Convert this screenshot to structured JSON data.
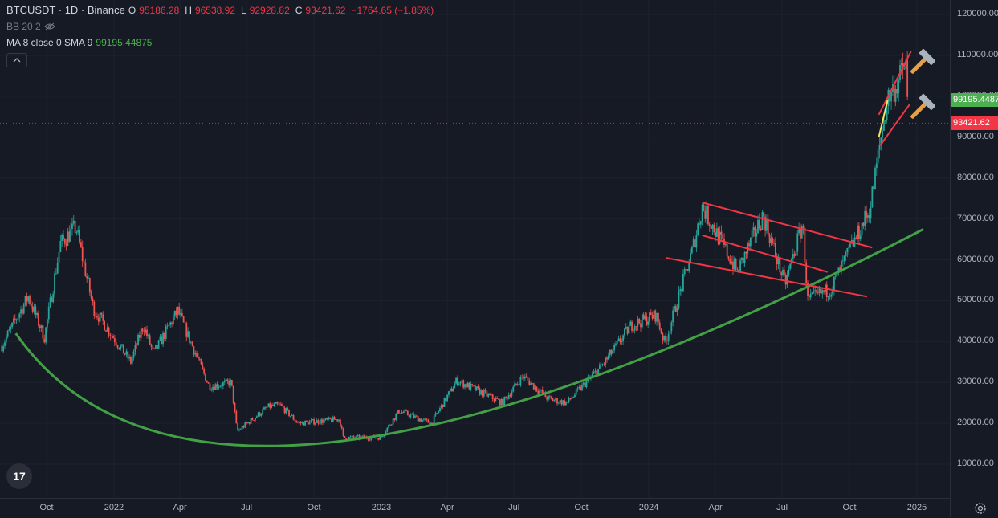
{
  "legend": {
    "symbol": "BTCUSDT · 1D · Binance",
    "open_label": "O",
    "open": "95186.28",
    "high_label": "H",
    "high": "96538.92",
    "low_label": "L",
    "low": "92928.82",
    "close_label": "C",
    "close": "93421.62",
    "change": "−1764.65 (−1.85%)",
    "bb": "BB 20 2",
    "ma_label": "MA 8 close 0 SMA 9",
    "ma_value": "99195.44875"
  },
  "colors": {
    "background": "#161a25",
    "up": "#26a69a",
    "down": "#ef5350",
    "trend_curve": "#43a047",
    "channel": "#f23645",
    "ma_badge": "#4caf50",
    "price_badge": "#f23645"
  },
  "price_badges": {
    "ma": "99195.4487",
    "last": "93421.62"
  },
  "icons": {
    "tv_logo": "17",
    "annotation": "hammer-icon"
  },
  "chart_data": {
    "type": "candlestick",
    "title": "BTCUSDT · 1D · Binance",
    "xlabel": "",
    "ylabel": "",
    "ylim": [
      0,
      125000
    ],
    "y_ticks": [
      "120000.00",
      "110000.00",
      "100000.00",
      "90000.00",
      "80000.00",
      "70000.00",
      "60000.00",
      "50000.00",
      "40000.00",
      "30000.00",
      "20000.00",
      "10000.00"
    ],
    "x_ticks": [
      "Oct",
      "2022",
      "Apr",
      "Jul",
      "Oct",
      "2023",
      "Apr",
      "Jul",
      "Oct",
      "2024",
      "Apr",
      "Jul",
      "Oct",
      "2025"
    ],
    "x_tick_dates": [
      "2021-10-01",
      "2022-01-01",
      "2022-04-01",
      "2022-07-01",
      "2022-10-01",
      "2023-01-01",
      "2023-04-01",
      "2023-07-01",
      "2023-10-01",
      "2024-01-01",
      "2024-04-01",
      "2024-07-01",
      "2024-10-01",
      "2025-01-01"
    ],
    "price_path": [
      [
        "2021-08-01",
        39000
      ],
      [
        "2021-09-06",
        51000
      ],
      [
        "2021-09-28",
        41000
      ],
      [
        "2021-10-20",
        64000
      ],
      [
        "2021-11-10",
        68000
      ],
      [
        "2021-12-04",
        48000
      ],
      [
        "2022-01-24",
        35000
      ],
      [
        "2022-02-10",
        44000
      ],
      [
        "2022-02-24",
        37000
      ],
      [
        "2022-03-29",
        47500
      ],
      [
        "2022-05-11",
        29000
      ],
      [
        "2022-06-10",
        30000
      ],
      [
        "2022-06-18",
        18000
      ],
      [
        "2022-07-30",
        24000
      ],
      [
        "2022-08-15",
        24500
      ],
      [
        "2022-09-10",
        20000
      ],
      [
        "2022-11-05",
        21000
      ],
      [
        "2022-11-10",
        16500
      ],
      [
        "2022-12-31",
        16500
      ],
      [
        "2023-01-25",
        23000
      ],
      [
        "2023-03-10",
        20000
      ],
      [
        "2023-04-14",
        30500
      ],
      [
        "2023-06-15",
        25000
      ],
      [
        "2023-07-13",
        31500
      ],
      [
        "2023-08-17",
        26000
      ],
      [
        "2023-09-11",
        25000
      ],
      [
        "2023-10-31",
        34500
      ],
      [
        "2023-12-08",
        44000
      ],
      [
        "2024-01-11",
        46500
      ],
      [
        "2024-01-23",
        39500
      ],
      [
        "2024-02-29",
        62000
      ],
      [
        "2024-03-14",
        73000
      ],
      [
        "2024-05-01",
        57000
      ],
      [
        "2024-06-05",
        71000
      ],
      [
        "2024-07-05",
        54000
      ],
      [
        "2024-07-29",
        69000
      ],
      [
        "2024-08-05",
        50000
      ],
      [
        "2024-09-06",
        53000
      ],
      [
        "2024-10-29",
        72500
      ],
      [
        "2024-11-13",
        90000
      ],
      [
        "2024-11-22",
        99500
      ],
      [
        "2024-12-05",
        103000
      ],
      [
        "2024-12-17",
        108000
      ],
      [
        "2024-12-20",
        93421.62
      ]
    ],
    "annotations": {
      "support_curve": [
        [
          "2021-08-20",
          42000
        ],
        [
          "2022-11-01",
          15500
        ],
        [
          "2025-01-10",
          67500
        ]
      ],
      "descending_channel": [
        [
          [
            "2024-03-14",
            74000
          ],
          [
            "2024-11-01",
            63000
          ]
        ],
        [
          [
            "2024-03-14",
            66000
          ],
          [
            "2024-09-01",
            57000
          ]
        ],
        [
          [
            "2024-01-24",
            60500
          ],
          [
            "2024-10-25",
            51000
          ]
        ]
      ],
      "rising_channel": [
        [
          [
            "2024-11-10",
            95500
          ],
          [
            "2024-12-24",
            111000
          ]
        ],
        [
          [
            "2024-11-12",
            88000
          ],
          [
            "2024-12-22",
            98000
          ]
        ]
      ],
      "hammer_icons": [
        [
          "2025-01-10",
          108500
        ],
        [
          "2025-01-10",
          97500
        ]
      ]
    },
    "ma": {
      "name": "MA 8 close 0 SMA 9",
      "last": 99195.44875
    }
  }
}
